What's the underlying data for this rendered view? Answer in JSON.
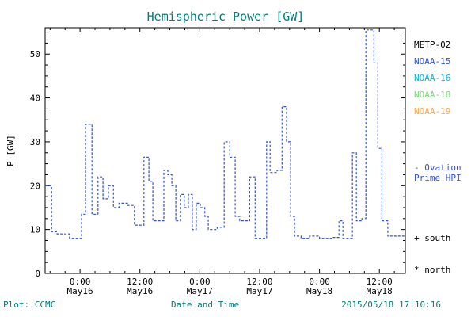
{
  "chart_data": {
    "type": "line",
    "style": "step-dashed",
    "title": "Hemispheric Power [GW]",
    "xlabel": "Date and Time",
    "ylabel": "P [GW]",
    "ylim": [
      0,
      56
    ],
    "yticks": [
      0,
      10,
      20,
      30,
      40,
      50
    ],
    "xlim_hours": [
      0,
      72.2
    ],
    "xticks": [
      {
        "t": 7,
        "time": "0:00",
        "date": "May16"
      },
      {
        "t": 19,
        "time": "12:00",
        "date": "May16"
      },
      {
        "t": 31,
        "time": "0:00",
        "date": "May17"
      },
      {
        "t": 43,
        "time": "12:00",
        "date": "May17"
      },
      {
        "t": 55,
        "time": "0:00",
        "date": "May18"
      },
      {
        "t": 67,
        "time": "12:00",
        "date": "May18"
      }
    ],
    "grid": false,
    "legend_position": "right",
    "series": [
      {
        "name": "Ovation Prime HPI",
        "color": "#3352cc",
        "dashed": true,
        "steps_hour_gw": [
          [
            0,
            20
          ],
          [
            1.3,
            9.5
          ],
          [
            2.4,
            9
          ],
          [
            4.9,
            8
          ],
          [
            7.3,
            13.5
          ],
          [
            8.1,
            34
          ],
          [
            9.4,
            13.5
          ],
          [
            10.6,
            22
          ],
          [
            11.6,
            17
          ],
          [
            12.7,
            20
          ],
          [
            13.7,
            15
          ],
          [
            14.8,
            16
          ],
          [
            16.5,
            15.5
          ],
          [
            17.9,
            11
          ],
          [
            19.8,
            26.5
          ],
          [
            20.8,
            21
          ],
          [
            21.6,
            12
          ],
          [
            23.8,
            23.5
          ],
          [
            24.6,
            22.5
          ],
          [
            25.4,
            20
          ],
          [
            26.2,
            12
          ],
          [
            27.1,
            18
          ],
          [
            27.9,
            15
          ],
          [
            28.7,
            18
          ],
          [
            29.5,
            10
          ],
          [
            30.3,
            16
          ],
          [
            31.1,
            15
          ],
          [
            32,
            13
          ],
          [
            32.7,
            10
          ],
          [
            34.5,
            10.5
          ],
          [
            35.9,
            30
          ],
          [
            37,
            26.5
          ],
          [
            38.1,
            13
          ],
          [
            39,
            12
          ],
          [
            41,
            22
          ],
          [
            42.1,
            8
          ],
          [
            44.4,
            30
          ],
          [
            45.1,
            23
          ],
          [
            46.5,
            23.5
          ],
          [
            47.5,
            38
          ],
          [
            48.4,
            30
          ],
          [
            49.2,
            13
          ],
          [
            50,
            8.5
          ],
          [
            51.3,
            8
          ],
          [
            53,
            8.5
          ],
          [
            55,
            8
          ],
          [
            57.6,
            8.2
          ],
          [
            58.9,
            12
          ],
          [
            59.7,
            8
          ],
          [
            61.6,
            27.5
          ],
          [
            62.4,
            12
          ],
          [
            63.5,
            12.5
          ],
          [
            64.3,
            55.5
          ],
          [
            65.9,
            48
          ],
          [
            66.7,
            28.5
          ],
          [
            67.5,
            12
          ],
          [
            68.7,
            8.5
          ]
        ]
      }
    ]
  },
  "legend": {
    "satellites": [
      {
        "label": "METP-02",
        "color": "#000000"
      },
      {
        "label": "NOAA-15",
        "color": "#3352cc"
      },
      {
        "label": "NOAA-16",
        "color": "#00b8d8"
      },
      {
        "label": "NOAA-18",
        "color": "#7cd87c"
      },
      {
        "label": "NOAA-19",
        "color": "#ffa447"
      }
    ],
    "ovation_label": "- Ovation\nPrime HPI",
    "ovation_color": "#3352cc",
    "south_label": "+ south",
    "north_label": "* north"
  },
  "footer": {
    "left": "Plot: CCMC",
    "right": "2015/05/18 17:10:16"
  },
  "colors": {
    "title": "#007d7d",
    "footer": "#007d7d",
    "axis": "#000000",
    "background": "#ffffff"
  }
}
